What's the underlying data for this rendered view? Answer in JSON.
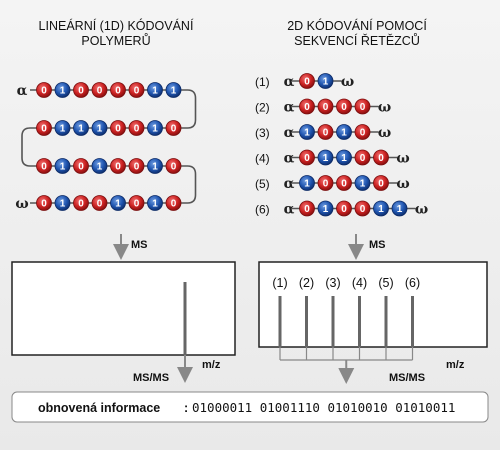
{
  "left_panel": {
    "title_line1": "LINEÁRNÍ (1D) KÓDOVÁNÍ",
    "title_line2": "POLYMERŮ",
    "alpha": "α",
    "omega": "ω",
    "rows": [
      [
        "0",
        "1",
        "0",
        "0",
        "0",
        "0",
        "1",
        "1"
      ],
      [
        "0",
        "1",
        "1",
        "1",
        "0",
        "0",
        "1",
        "0"
      ],
      [
        "0",
        "1",
        "0",
        "1",
        "0",
        "0",
        "1",
        "0"
      ],
      [
        "0",
        "1",
        "0",
        "0",
        "1",
        "0",
        "1",
        "0"
      ]
    ],
    "ms_label": "MS",
    "msms_label": "MS/MS",
    "axis_label": "m/z"
  },
  "right_panel": {
    "title_line1": "2D KÓDOVÁNÍ POMOCÍ",
    "title_line2": "SEKVENCÍ ŘETĚZCŮ",
    "alpha": "α",
    "omega": "ω",
    "chains": [
      {
        "label": "(1)",
        "bits": [
          "0",
          "1"
        ]
      },
      {
        "label": "(2)",
        "bits": [
          "0",
          "0",
          "0",
          "0"
        ]
      },
      {
        "label": "(3)",
        "bits": [
          "1",
          "0",
          "1",
          "0"
        ]
      },
      {
        "label": "(4)",
        "bits": [
          "0",
          "1",
          "1",
          "0",
          "0"
        ]
      },
      {
        "label": "(5)",
        "bits": [
          "1",
          "0",
          "0",
          "1",
          "0"
        ]
      },
      {
        "label": "(6)",
        "bits": [
          "0",
          "1",
          "0",
          "0",
          "1",
          "1"
        ]
      }
    ],
    "ms_label": "MS",
    "msms_label": "MS/MS",
    "axis_label": "m/z",
    "peak_labels": [
      "(1)",
      "(2)",
      "(3)",
      "(4)",
      "(5)",
      "(6)"
    ]
  },
  "result": {
    "key": "obnovená informace",
    "separator": ":",
    "value": "01000011 01001110 01010010 01010011"
  },
  "colors": {
    "bead_zero": "#cc2222",
    "bead_one": "#1f55b0",
    "connector": "#555555",
    "arrow": "#888888",
    "panel_border": "#222222"
  }
}
